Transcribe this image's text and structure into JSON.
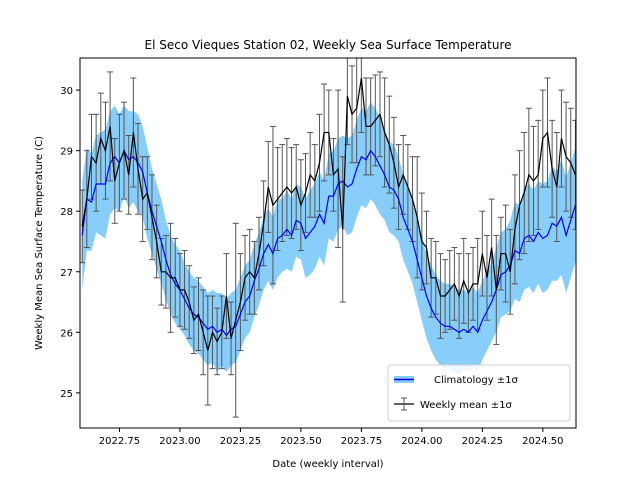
{
  "chart_data": {
    "type": "line",
    "title": "El Seco Vieques Station 02, Weekly Sea Surface Temperature",
    "xlabel": "Date (weekly interval)",
    "ylabel": "Weekly Mean Sea Surface Temperature (C)",
    "xlim": [
      2022.587,
      2024.637
    ],
    "ylim": [
      24.42,
      30.53
    ],
    "xticks": [
      2022.75,
      2023.0,
      2023.25,
      2023.5,
      2023.75,
      2024.0,
      2024.25,
      2024.5
    ],
    "xtick_labels": [
      "2022.75",
      "2023.00",
      "2023.25",
      "2023.50",
      "2023.75",
      "2024.00",
      "2024.25",
      "2024.50"
    ],
    "yticks": [
      25,
      26,
      27,
      28,
      29,
      30
    ],
    "ytick_labels": [
      "25",
      "26",
      "27",
      "28",
      "29",
      "30"
    ],
    "grid": false,
    "legend_position": "bottom-right",
    "legend": [
      {
        "label": "Climatology ±1σ",
        "kind": "band-line",
        "line_color": "#0000ff",
        "fill_color": "#87cefa"
      },
      {
        "label": "Weekly mean ±1σ",
        "kind": "errorbar",
        "line_color": "#000000",
        "err_color": "#555555"
      }
    ],
    "x_start": 2022.596,
    "x_step_weeks": 1,
    "series": [
      {
        "name": "Weekly mean",
        "color": "#000000",
        "values": [
          27.75,
          28.2,
          28.9,
          28.8,
          29.2,
          29.0,
          29.4,
          28.5,
          28.8,
          29.0,
          28.6,
          29.3,
          28.7,
          28.2,
          28.3,
          27.9,
          27.5,
          27.0,
          27.0,
          26.9,
          26.9,
          26.7,
          26.7,
          26.5,
          26.2,
          26.3,
          26.0,
          25.7,
          26.0,
          25.85,
          26.0,
          26.6,
          25.9,
          26.2,
          26.5,
          26.9,
          27.0,
          26.9,
          27.3,
          27.8,
          28.4,
          28.1,
          28.2,
          28.3,
          28.4,
          28.3,
          28.4,
          28.1,
          28.3,
          28.6,
          28.5,
          28.8,
          29.3,
          29.3,
          28.6,
          28.7,
          27.7,
          29.9,
          29.6,
          29.7,
          30.2,
          29.4,
          29.4,
          29.5,
          29.6,
          29.3,
          29.1,
          28.8,
          28.4,
          28.6,
          28.4,
          28.2,
          27.9,
          27.5,
          27.4,
          26.9,
          26.9,
          26.6,
          26.6,
          26.7,
          26.8,
          26.6,
          26.85,
          26.65,
          26.8,
          26.8,
          27.3,
          26.9,
          27.4,
          26.7,
          27.3,
          27.3,
          27.0,
          27.7,
          28.1,
          28.3,
          28.6,
          28.5,
          28.6,
          29.2,
          29.3,
          28.7,
          28.4,
          29.2,
          28.9,
          28.8,
          28.6
        ],
        "std": [
          0.6,
          0.8,
          0.7,
          0.8,
          0.75,
          0.8,
          0.9,
          0.7,
          0.8,
          0.8,
          0.65,
          0.9,
          0.75,
          0.7,
          0.6,
          0.7,
          0.6,
          0.55,
          0.6,
          0.9,
          0.65,
          0.6,
          0.65,
          0.6,
          0.55,
          0.6,
          0.7,
          0.9,
          0.6,
          0.55,
          0.6,
          0.7,
          0.6,
          1.6,
          0.8,
          0.7,
          0.7,
          0.6,
          0.6,
          0.7,
          0.75,
          1.3,
          0.85,
          0.8,
          0.8,
          0.75,
          0.7,
          0.75,
          0.65,
          0.7,
          0.6,
          0.8,
          0.8,
          0.7,
          0.6,
          1.3,
          1.2,
          0.8,
          0.8,
          0.9,
          0.9,
          0.8,
          0.8,
          0.75,
          0.7,
          0.9,
          0.8,
          0.75,
          0.7,
          0.65,
          0.7,
          0.7,
          1.0,
          0.8,
          0.6,
          0.65,
          0.6,
          0.7,
          0.6,
          0.65,
          0.6,
          0.7,
          0.7,
          0.65,
          0.6,
          0.75,
          0.7,
          0.7,
          0.8,
          0.9,
          0.6,
          0.8,
          0.7,
          0.9,
          0.9,
          1.0,
          1.1,
          0.9,
          0.9,
          0.8,
          0.9,
          0.8,
          0.9,
          0.8,
          0.9,
          0.9,
          0.9
        ]
      },
      {
        "name": "Climatology",
        "color": "#0000ff",
        "band_color": "#87cefa",
        "values": [
          27.6,
          28.2,
          28.15,
          28.45,
          28.45,
          28.45,
          28.8,
          28.9,
          28.8,
          29.0,
          28.85,
          28.9,
          28.8,
          28.65,
          28.3,
          28.0,
          27.75,
          27.5,
          27.2,
          26.95,
          26.8,
          26.7,
          26.55,
          26.4,
          26.3,
          26.25,
          26.15,
          26.05,
          26.1,
          26.0,
          26.05,
          25.95,
          26.05,
          26.1,
          26.3,
          26.5,
          26.6,
          26.85,
          27.05,
          27.3,
          27.45,
          27.3,
          27.55,
          27.6,
          27.7,
          27.6,
          27.85,
          27.8,
          27.55,
          27.65,
          27.75,
          27.95,
          27.8,
          28.25,
          28.25,
          28.45,
          28.5,
          28.4,
          28.45,
          28.7,
          28.9,
          28.85,
          29.0,
          28.9,
          28.75,
          28.6,
          28.4,
          28.35,
          28.2,
          27.9,
          27.7,
          27.5,
          27.2,
          26.9,
          26.6,
          26.4,
          26.25,
          26.15,
          26.1,
          26.1,
          26.05,
          26.0,
          26.05,
          26.0,
          26.1,
          26.0,
          26.2,
          26.35,
          26.5,
          26.7,
          26.95,
          27.0,
          27.1,
          27.35,
          27.3,
          27.55,
          27.6,
          27.5,
          27.65,
          27.55,
          27.6,
          27.8,
          27.75,
          27.9,
          27.6,
          27.85,
          28.1
        ],
        "std": [
          0.9,
          0.85,
          0.8,
          0.8,
          0.85,
          0.9,
          0.85,
          0.85,
          0.8,
          0.75,
          0.8,
          0.75,
          0.8,
          0.75,
          0.75,
          0.7,
          0.7,
          0.7,
          0.65,
          0.65,
          0.65,
          0.65,
          0.6,
          0.6,
          0.6,
          0.6,
          0.6,
          0.6,
          0.6,
          0.65,
          0.6,
          0.6,
          0.6,
          0.6,
          0.6,
          0.6,
          0.6,
          0.6,
          0.6,
          0.6,
          0.6,
          0.6,
          0.65,
          0.6,
          0.65,
          0.6,
          0.6,
          0.6,
          0.65,
          0.7,
          0.7,
          0.7,
          0.7,
          0.7,
          0.75,
          0.75,
          0.75,
          0.8,
          0.8,
          0.8,
          0.8,
          0.8,
          0.8,
          0.8,
          0.8,
          0.75,
          0.75,
          0.75,
          0.7,
          0.7,
          0.7,
          0.7,
          0.7,
          0.7,
          0.7,
          0.7,
          0.7,
          0.7,
          0.7,
          0.7,
          0.7,
          0.7,
          0.65,
          0.65,
          0.65,
          0.65,
          0.65,
          0.65,
          0.65,
          0.7,
          0.7,
          0.7,
          0.75,
          0.8,
          0.8,
          0.85,
          0.85,
          0.85,
          0.85,
          0.9,
          0.9,
          0.95,
          0.9,
          0.95,
          0.95,
          0.95,
          0.95
        ]
      }
    ]
  }
}
